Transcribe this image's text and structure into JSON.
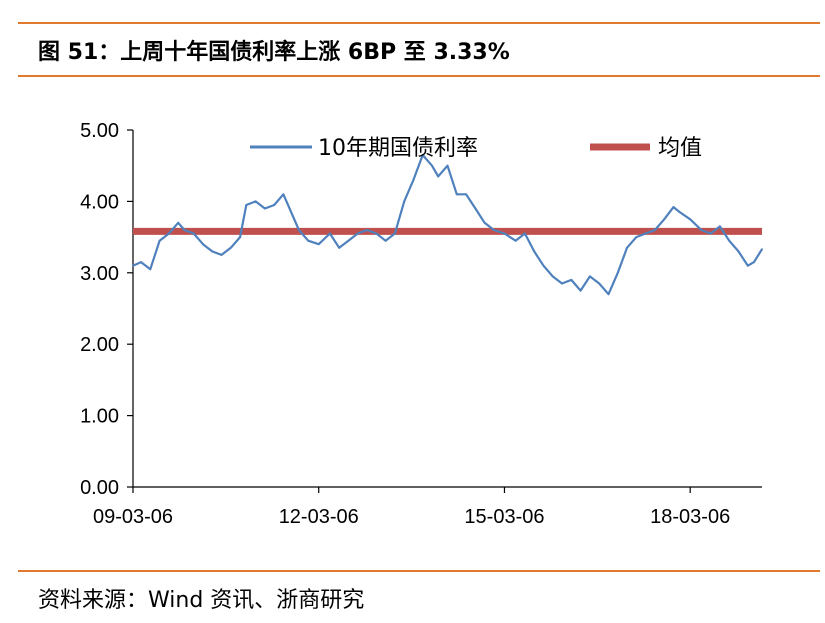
{
  "header": {
    "title": "图 51：上周十年国债利率上涨 6BP 至 3.33%"
  },
  "footer": {
    "source": "资料来源：Wind 资讯、浙商研究"
  },
  "colors": {
    "accent_rule": "#E07A2E",
    "series_line": "#4F81BD",
    "mean_line": "#C0504D"
  },
  "chart_data": {
    "type": "line",
    "title": "",
    "xlabel": "",
    "ylabel": "",
    "ylim": [
      0,
      5
    ],
    "yticks": [
      "0.00",
      "1.00",
      "2.00",
      "3.00",
      "4.00",
      "5.00"
    ],
    "xlim": [
      2009.17,
      2019.33
    ],
    "xticks": [
      {
        "x": 2009.17,
        "label": "09-03-06"
      },
      {
        "x": 2012.17,
        "label": "12-03-06"
      },
      {
        "x": 2015.17,
        "label": "15-03-06"
      },
      {
        "x": 2018.17,
        "label": "18-03-06"
      }
    ],
    "legend_position": "top",
    "series": [
      {
        "name": "10年期国债利率",
        "kind": "line",
        "x": [
          2009.17,
          2009.3,
          2009.45,
          2009.6,
          2009.75,
          2009.9,
          2010.0,
          2010.15,
          2010.3,
          2010.45,
          2010.6,
          2010.75,
          2010.9,
          2011.0,
          2011.15,
          2011.3,
          2011.45,
          2011.6,
          2011.75,
          2011.85,
          2012.0,
          2012.17,
          2012.35,
          2012.5,
          2012.65,
          2012.8,
          2012.95,
          2013.1,
          2013.25,
          2013.4,
          2013.55,
          2013.7,
          2013.85,
          2014.0,
          2014.1,
          2014.25,
          2014.4,
          2014.55,
          2014.7,
          2014.85,
          2015.0,
          2015.17,
          2015.35,
          2015.5,
          2015.65,
          2015.8,
          2015.95,
          2016.1,
          2016.25,
          2016.4,
          2016.55,
          2016.7,
          2016.85,
          2017.0,
          2017.15,
          2017.3,
          2017.45,
          2017.6,
          2017.75,
          2017.9,
          2018.0,
          2018.17,
          2018.35,
          2018.5,
          2018.65,
          2018.8,
          2018.95,
          2019.1,
          2019.2,
          2019.33
        ],
        "values": [
          3.1,
          3.15,
          3.05,
          3.45,
          3.55,
          3.7,
          3.6,
          3.55,
          3.4,
          3.3,
          3.25,
          3.35,
          3.5,
          3.95,
          4.0,
          3.9,
          3.95,
          4.1,
          3.8,
          3.6,
          3.45,
          3.4,
          3.55,
          3.35,
          3.45,
          3.55,
          3.6,
          3.55,
          3.45,
          3.55,
          4.0,
          4.3,
          4.65,
          4.5,
          4.35,
          4.5,
          4.1,
          4.1,
          3.9,
          3.7,
          3.6,
          3.55,
          3.45,
          3.55,
          3.3,
          3.1,
          2.95,
          2.85,
          2.9,
          2.75,
          2.95,
          2.85,
          2.7,
          3.0,
          3.35,
          3.5,
          3.55,
          3.6,
          3.75,
          3.92,
          3.85,
          3.75,
          3.6,
          3.55,
          3.65,
          3.45,
          3.3,
          3.1,
          3.15,
          3.33
        ]
      },
      {
        "name": "均值",
        "kind": "hline",
        "value": 3.58
      }
    ]
  }
}
